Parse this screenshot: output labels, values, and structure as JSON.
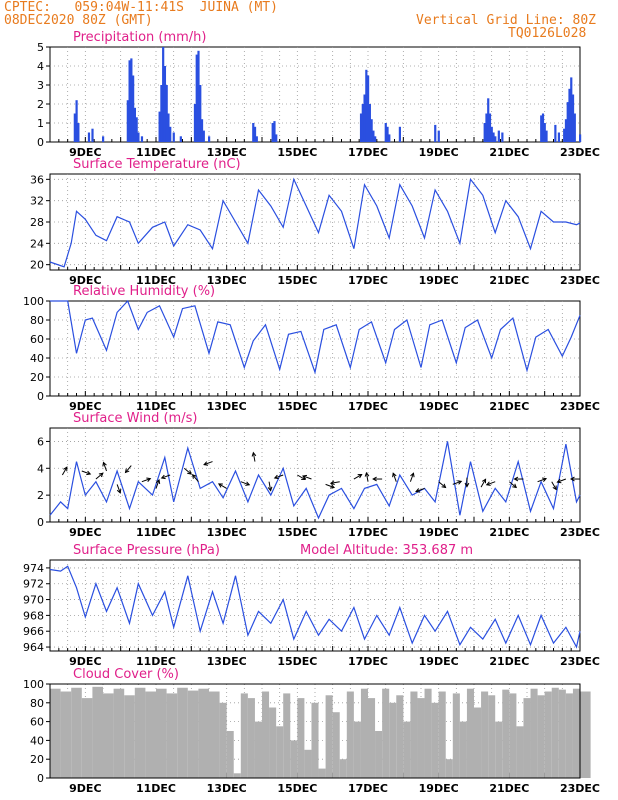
{
  "header": {
    "line1": "CPTEC:   059:04W-11:41S  JUINA (MT)",
    "line2": "08DEC2020 80Z (GMT)",
    "right1": "Vertical Grid Line: 80Z",
    "right2": "TQ0126L028"
  },
  "colors": {
    "line": "#2a4fe0",
    "title": "#e0208a",
    "header": "#e87b1e",
    "cloud": "#b0b0b0",
    "wind_arrow": "#000000"
  },
  "x_axis": {
    "date_labels": [
      "9DEC",
      "11DEC",
      "13DEC",
      "15DEC",
      "17DEC",
      "19DEC",
      "21DEC",
      "23DEC"
    ],
    "label_day_index": [
      1,
      3,
      5,
      7,
      9,
      11,
      13,
      15
    ],
    "range_days": [
      0,
      15
    ],
    "start": "08DEC2020"
  },
  "chart_data": [
    {
      "type": "bar",
      "id": "precip",
      "title": "Precipitation (mm/h)",
      "ylim": [
        0,
        5
      ],
      "yticks": [
        "0",
        "1",
        "2",
        "3",
        "4",
        "5"
      ],
      "x_days": [
        0.7,
        0.75,
        0.8,
        1.1,
        1.2,
        1.5,
        2.2,
        2.25,
        2.3,
        2.35,
        2.4,
        2.45,
        2.5,
        2.6,
        3.1,
        3.15,
        3.2,
        3.25,
        3.3,
        3.35,
        3.4,
        3.5,
        3.7,
        4.1,
        4.15,
        4.2,
        4.25,
        4.3,
        4.35,
        4.5,
        5.75,
        5.8,
        5.85,
        6.3,
        6.35,
        6.4,
        8.8,
        8.85,
        8.9,
        8.95,
        9.0,
        9.05,
        9.1,
        9.15,
        9.2,
        9.5,
        9.55,
        9.6,
        9.9,
        10.9,
        11.0,
        12.3,
        12.35,
        12.4,
        12.45,
        12.5,
        12.55,
        12.6,
        12.7,
        12.8,
        13.9,
        13.95,
        14.0,
        14.05,
        14.3,
        14.4,
        14.55,
        14.6,
        14.65,
        14.7,
        14.75,
        14.8,
        14.85,
        15.0
      ],
      "values": [
        1.5,
        2.2,
        1.0,
        0.5,
        0.7,
        0.3,
        2.2,
        4.3,
        4.4,
        3.5,
        1.8,
        1.3,
        0.5,
        0.3,
        1.6,
        3.0,
        5.0,
        4.0,
        3.0,
        1.5,
        0.8,
        0.5,
        0.3,
        2.0,
        4.6,
        4.8,
        3.0,
        1.2,
        0.6,
        0.3,
        1.0,
        0.8,
        0.3,
        1.0,
        1.1,
        0.4,
        1.5,
        2.0,
        2.5,
        3.8,
        3.5,
        2.0,
        1.2,
        0.6,
        0.3,
        1.0,
        0.8,
        0.4,
        0.8,
        0.9,
        0.6,
        1.0,
        1.5,
        2.3,
        1.5,
        0.8,
        0.5,
        0.3,
        0.6,
        0.5,
        1.4,
        1.5,
        1.0,
        0.6,
        0.9,
        0.5,
        0.7,
        1.2,
        2.1,
        2.8,
        3.4,
        2.5,
        1.5,
        0.4
      ]
    },
    {
      "type": "line",
      "id": "temp",
      "title": "Surface Temperature (nC)",
      "ylim": [
        19,
        37
      ],
      "yticks": [
        "20",
        "24",
        "28",
        "32",
        "36"
      ],
      "x_days": [
        0,
        0.4,
        0.6,
        0.75,
        1,
        1.3,
        1.6,
        1.9,
        2.25,
        2.5,
        2.9,
        3.25,
        3.5,
        3.9,
        4.25,
        4.6,
        4.9,
        5.25,
        5.6,
        5.9,
        6.25,
        6.6,
        6.9,
        7.25,
        7.6,
        7.9,
        8.25,
        8.6,
        8.9,
        9.25,
        9.6,
        9.9,
        10.25,
        10.6,
        10.9,
        11.25,
        11.6,
        11.9,
        12.25,
        12.6,
        12.9,
        13.25,
        13.6,
        13.9,
        14.25,
        14.6,
        14.9,
        15
      ],
      "values": [
        20.5,
        19.6,
        24,
        30,
        28.5,
        25.5,
        24.5,
        29,
        28,
        24,
        27,
        28,
        23.5,
        27.5,
        26.5,
        23,
        32,
        28,
        24,
        34,
        31,
        27,
        36,
        31,
        26,
        33,
        30,
        23,
        35,
        31,
        25,
        35,
        31,
        25,
        34,
        30,
        24,
        36,
        33,
        26,
        32,
        29,
        23,
        30,
        28,
        28,
        27.5,
        27.8
      ]
    },
    {
      "type": "line",
      "id": "rh",
      "title": "Relative Humidity (%)",
      "ylim": [
        0,
        100
      ],
      "yticks": [
        "0",
        "20",
        "40",
        "60",
        "80",
        "100"
      ],
      "x_days": [
        0,
        0.5,
        0.75,
        1,
        1.2,
        1.6,
        1.9,
        2.2,
        2.5,
        2.75,
        3.1,
        3.5,
        3.75,
        4.1,
        4.5,
        4.75,
        5.1,
        5.5,
        5.75,
        6.1,
        6.5,
        6.75,
        7.1,
        7.5,
        7.75,
        8.1,
        8.5,
        8.75,
        9.1,
        9.5,
        9.75,
        10.1,
        10.5,
        10.75,
        11.1,
        11.5,
        11.75,
        12.1,
        12.5,
        12.75,
        13.1,
        13.5,
        13.75,
        14.1,
        14.5,
        14.75,
        15
      ],
      "values": [
        100,
        100,
        45,
        80,
        82,
        48,
        88,
        100,
        70,
        88,
        95,
        62,
        92,
        95,
        45,
        78,
        75,
        30,
        58,
        75,
        28,
        65,
        68,
        25,
        70,
        75,
        30,
        70,
        78,
        35,
        70,
        80,
        30,
        75,
        80,
        35,
        72,
        80,
        40,
        70,
        82,
        27,
        62,
        70,
        42,
        62,
        85
      ]
    },
    {
      "type": "line",
      "id": "wind",
      "title": "Surface Wind (m/s)",
      "ylim": [
        0,
        7
      ],
      "yticks": [
        "0",
        "2",
        "4",
        "6"
      ],
      "x_days": [
        0,
        0.3,
        0.5,
        0.75,
        1,
        1.3,
        1.6,
        1.9,
        2.25,
        2.5,
        2.9,
        3.25,
        3.5,
        3.9,
        4.25,
        4.6,
        4.9,
        5.25,
        5.6,
        5.9,
        6.25,
        6.6,
        6.9,
        7.25,
        7.6,
        7.9,
        8.25,
        8.6,
        8.9,
        9.25,
        9.6,
        9.9,
        10.25,
        10.6,
        10.9,
        11.25,
        11.6,
        11.9,
        12.25,
        12.6,
        12.9,
        13.25,
        13.6,
        13.9,
        14.25,
        14.6,
        14.9,
        15
      ],
      "values": [
        0.5,
        1.5,
        1.0,
        4.5,
        2.0,
        3.0,
        1.5,
        3.8,
        1.0,
        3.0,
        2.0,
        4.8,
        1.5,
        5.5,
        2.5,
        3.0,
        1.8,
        3.8,
        1.5,
        3.5,
        2.0,
        4.0,
        1.2,
        2.5,
        0.3,
        2.0,
        2.5,
        1.0,
        2.5,
        2.8,
        1.2,
        3.5,
        2.0,
        2.5,
        1.5,
        6.0,
        0.5,
        4.5,
        0.8,
        2.5,
        1.5,
        4.5,
        0.8,
        3.0,
        1.0,
        5.8,
        1.5,
        2.0
      ]
    },
    {
      "type": "line",
      "id": "pres",
      "title": "Surface Pressure (hPa)",
      "annotation": "Model Altitude: 353.687 m",
      "ylim": [
        963.5,
        975
      ],
      "yticks": [
        "964",
        "966",
        "968",
        "970",
        "972",
        "974"
      ],
      "x_days": [
        0,
        0.3,
        0.5,
        0.75,
        1,
        1.3,
        1.6,
        1.9,
        2.25,
        2.5,
        2.9,
        3.25,
        3.5,
        3.9,
        4.25,
        4.6,
        4.9,
        5.25,
        5.6,
        5.9,
        6.25,
        6.6,
        6.9,
        7.25,
        7.6,
        7.9,
        8.25,
        8.6,
        8.9,
        9.25,
        9.6,
        9.9,
        10.25,
        10.6,
        10.9,
        11.25,
        11.6,
        11.9,
        12.25,
        12.6,
        12.9,
        13.25,
        13.6,
        13.9,
        14.25,
        14.6,
        14.9,
        15
      ],
      "values": [
        973.8,
        973.6,
        974.2,
        971.5,
        967.8,
        972,
        968.5,
        971.5,
        967,
        972,
        968,
        971,
        966.5,
        973,
        966,
        971,
        967,
        973,
        965.5,
        968.5,
        967,
        970,
        965,
        968.5,
        965.5,
        967.5,
        966,
        969,
        965,
        968,
        965.5,
        969,
        964.5,
        968,
        966,
        968.5,
        964.3,
        966.5,
        965,
        967.5,
        964.5,
        968,
        964.3,
        968,
        964.5,
        966.5,
        964,
        966
      ]
    },
    {
      "type": "area",
      "id": "cloud",
      "title": "Cloud Cover (%)",
      "ylim": [
        0,
        100
      ],
      "yticks": [
        "0",
        "20",
        "40",
        "60",
        "80",
        "100"
      ],
      "x_days": [
        0,
        0.3,
        0.6,
        0.9,
        1.2,
        1.5,
        1.8,
        2.1,
        2.4,
        2.7,
        3.0,
        3.3,
        3.6,
        3.9,
        4.2,
        4.5,
        4.8,
        5.0,
        5.2,
        5.4,
        5.6,
        5.8,
        6.0,
        6.2,
        6.4,
        6.6,
        6.8,
        7.0,
        7.2,
        7.4,
        7.6,
        7.8,
        8.0,
        8.2,
        8.4,
        8.6,
        8.8,
        9.0,
        9.2,
        9.4,
        9.6,
        9.8,
        10.0,
        10.2,
        10.4,
        10.6,
        10.8,
        11.0,
        11.2,
        11.4,
        11.6,
        11.8,
        12.0,
        12.2,
        12.4,
        12.6,
        12.8,
        13.0,
        13.2,
        13.4,
        13.6,
        13.8,
        14.0,
        14.2,
        14.4,
        14.6,
        14.8,
        15.0
      ],
      "values": [
        95,
        92,
        96,
        85,
        97,
        90,
        95,
        88,
        96,
        92,
        95,
        90,
        96,
        93,
        95,
        92,
        80,
        50,
        5,
        90,
        85,
        60,
        92,
        75,
        55,
        90,
        40,
        85,
        30,
        80,
        10,
        88,
        70,
        20,
        92,
        60,
        95,
        85,
        50,
        95,
        80,
        88,
        60,
        92,
        85,
        95,
        80,
        92,
        20,
        90,
        60,
        95,
        75,
        92,
        88,
        60,
        94,
        90,
        55,
        85,
        95,
        88,
        92,
        96,
        94,
        90,
        95,
        92
      ]
    }
  ],
  "wind_arrows": {
    "x_days": [
      0.35,
      0.9,
      1.3,
      1.6,
      1.9,
      2.3,
      2.6,
      3.0,
      3.4,
      3.8,
      4.2,
      4.6,
      5.0,
      5.4,
      5.8,
      6.2,
      6.6,
      7.0,
      7.4,
      7.8,
      8.2,
      8.6,
      9.0,
      9.4,
      9.8,
      10.2,
      10.6,
      11.0,
      11.4,
      11.8,
      12.2,
      12.6,
      13.0,
      13.4,
      13.8,
      14.2,
      14.6,
      15.0
    ],
    "y_values": [
      3.5,
      3.8,
      3.2,
      3.8,
      2.8,
      4.2,
      3.0,
      2.5,
      3.5,
      4.0,
      3.0,
      4.5,
      2.5,
      3.0,
      4.5,
      3.0,
      3.5,
      3.5,
      3.2,
      2.8,
      3.0,
      3.2,
      3.0,
      3.2,
      3.0,
      3.0,
      2.5,
      3.0,
      2.8,
      3.3,
      2.6,
      3.0,
      3.0,
      3.2,
      3.0,
      3.0,
      3.2,
      3.2
    ],
    "angles_deg": [
      60,
      -20,
      40,
      110,
      -70,
      -130,
      20,
      70,
      200,
      -40,
      130,
      200,
      150,
      -20,
      100,
      -80,
      200,
      -30,
      160,
      -20,
      190,
      30,
      100,
      180,
      110,
      70,
      200,
      -40,
      20,
      -90,
      60,
      200,
      -40,
      180,
      20,
      -60,
      200,
      180
    ]
  }
}
